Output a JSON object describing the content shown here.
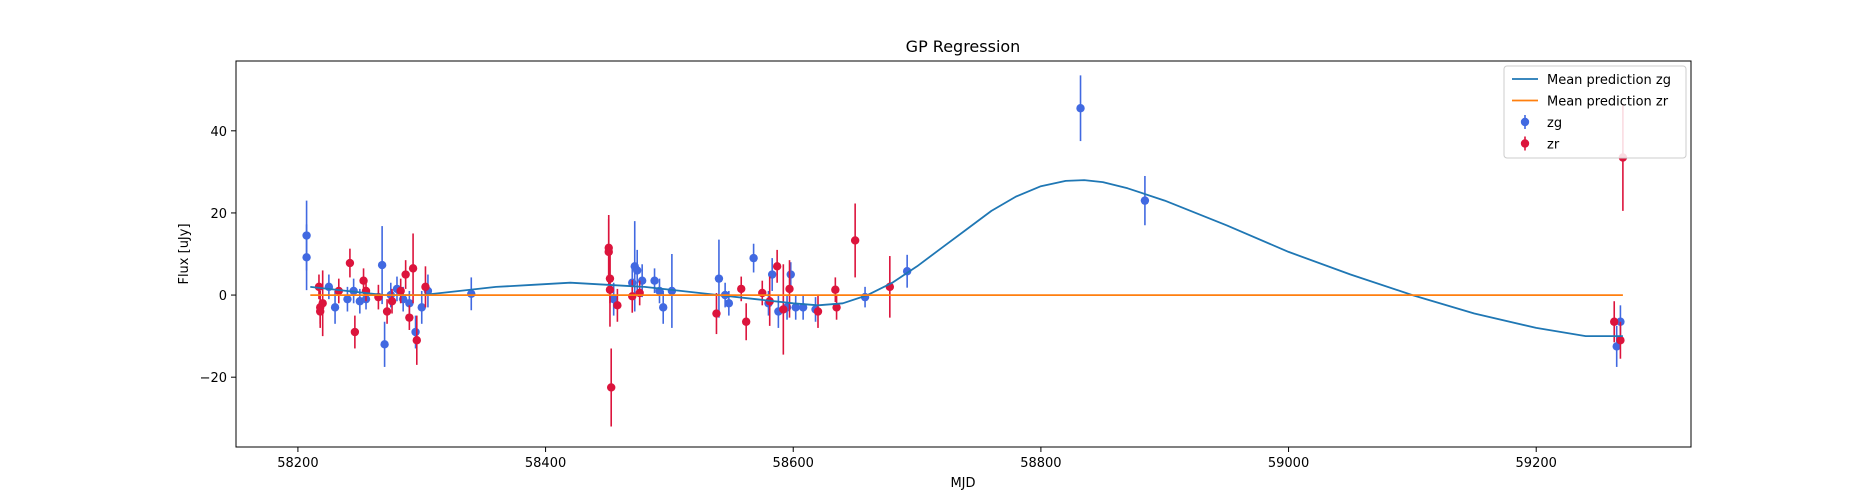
{
  "chart_data": {
    "type": "scatter",
    "title": "GP Regression",
    "xlabel": "MJD",
    "ylabel": "Flux [uJy]",
    "xlim": [
      58150,
      59325
    ],
    "ylim": [
      -37,
      57
    ],
    "xticks": [
      58200,
      58400,
      58600,
      58800,
      59000,
      59200
    ],
    "yticks": [
      -20,
      0,
      20,
      40
    ],
    "grid": false,
    "legend_position": "top-right",
    "series": [
      {
        "name": "Mean prediction zg",
        "kind": "line",
        "color": "#1f77b4",
        "x": [
          58210,
          58240,
          58270,
          58300,
          58330,
          58360,
          58390,
          58420,
          58450,
          58480,
          58510,
          58540,
          58570,
          58600,
          58620,
          58640,
          58660,
          58680,
          58700,
          58720,
          58740,
          58760,
          58780,
          58800,
          58820,
          58835,
          58850,
          58870,
          58900,
          58950,
          59000,
          59050,
          59100,
          59150,
          59200,
          59240,
          59270
        ],
        "y": [
          2,
          1,
          0,
          0,
          1,
          2,
          2.5,
          3,
          2.5,
          2,
          1,
          0,
          -1,
          -2,
          -2.5,
          -2,
          0,
          3,
          7,
          11.5,
          16,
          20.5,
          24,
          26.5,
          27.8,
          28,
          27.5,
          26,
          23,
          17,
          10.5,
          5,
          0,
          -4.5,
          -8,
          -10,
          -10
        ]
      },
      {
        "name": "Mean prediction zr",
        "kind": "line",
        "color": "#ff7f0e",
        "x": [
          58210,
          58600,
          59270
        ],
        "y": [
          0,
          0,
          0
        ]
      },
      {
        "name": "zg",
        "kind": "errorbar",
        "color": "#4169e1",
        "x": [
          58207,
          58207,
          58225,
          58230,
          58240,
          58245,
          58250,
          58255,
          58268,
          58270,
          58275,
          58280,
          58285,
          58290,
          58295,
          58300,
          58305,
          58340,
          58455,
          58470,
          58472,
          58474,
          58478,
          58488,
          58492,
          58495,
          58502,
          58540,
          58545,
          58548,
          58568,
          58580,
          58583,
          58588,
          58595,
          58598,
          58602,
          58608,
          58618,
          58658,
          58692,
          58832,
          58884,
          59265,
          59268
        ],
        "y": [
          14.5,
          9.2,
          2,
          -3,
          -1,
          1,
          -1.5,
          -1,
          7.3,
          -12,
          0,
          1.5,
          -1,
          -2,
          -9,
          -3,
          1,
          0.3,
          -1,
          3,
          7,
          6,
          3.5,
          3.5,
          1,
          -3,
          1,
          4,
          0,
          -2,
          9,
          -2,
          5,
          -4,
          -3,
          5,
          -3,
          -3,
          -3.5,
          -0.5,
          5.8,
          45.5,
          23,
          -12.5,
          -6.5
        ],
        "yerr": [
          8.5,
          8,
          3,
          4,
          3,
          3,
          3,
          2.5,
          9.5,
          5.5,
          3,
          3,
          3,
          3,
          4,
          4,
          4,
          4,
          4,
          4,
          11,
          5,
          4,
          3,
          3,
          4,
          9,
          9.5,
          3,
          3,
          3.5,
          3,
          4,
          4,
          3,
          3,
          3,
          3,
          3,
          2.5,
          4,
          8,
          6,
          5,
          4
        ]
      },
      {
        "name": "zr",
        "kind": "errorbar",
        "color": "#dc143c",
        "x": [
          58217,
          58218,
          58218,
          58220,
          58233,
          58242,
          58246,
          58253,
          58255,
          58265,
          58272,
          58276,
          58283,
          58287,
          58290,
          58293,
          58296,
          58303,
          58451,
          58451,
          58452,
          58452,
          58453,
          58458,
          58470,
          58476,
          58538,
          58558,
          58562,
          58575,
          58581,
          58587,
          58592,
          58597,
          58620,
          58634,
          58635,
          58650,
          58678,
          59263,
          59268,
          59270
        ],
        "y": [
          2,
          -3,
          -4,
          -2,
          1,
          7.8,
          -9,
          3.5,
          1,
          -0.5,
          -4,
          -1.5,
          1,
          5,
          -5.5,
          6.5,
          -11,
          2,
          11.5,
          10.5,
          4,
          1.3,
          -22.5,
          -2.5,
          -0.3,
          0.5,
          -4.5,
          1.5,
          -6.5,
          0.5,
          -1.5,
          7,
          -3.5,
          1.5,
          -4,
          1.3,
          -3,
          13.3,
          2,
          -6.5,
          -11,
          33.5
        ],
        "yerr": [
          3,
          4,
          4,
          8,
          3,
          3.5,
          4,
          3,
          2.5,
          3,
          3,
          3,
          3,
          3.5,
          3,
          8.5,
          6,
          5,
          8,
          8,
          6,
          9,
          9.5,
          4,
          4,
          3,
          5,
          3,
          4.5,
          3,
          6,
          4,
          11,
          7,
          4,
          3,
          3,
          9,
          7.5,
          5,
          4.5,
          13
        ]
      }
    ]
  }
}
